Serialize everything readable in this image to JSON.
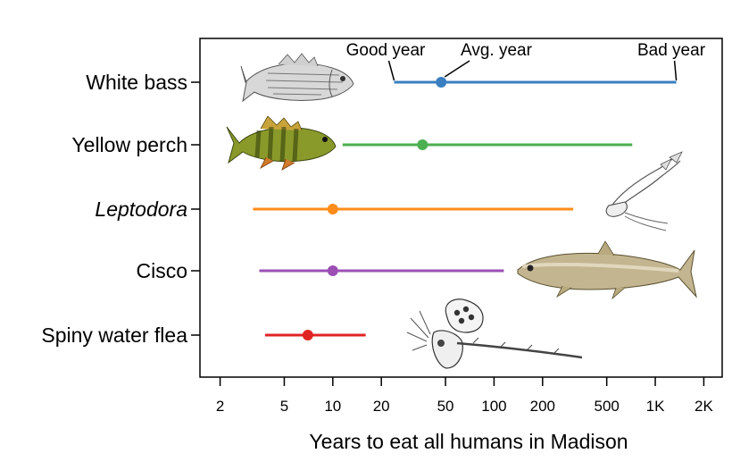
{
  "chart_data": {
    "type": "range-dot",
    "xlabel": "Years to eat all humans in Madison",
    "x_scale": "log",
    "xlim": [
      1.5,
      2600
    ],
    "x_ticks": [
      2,
      5,
      10,
      20,
      50,
      100,
      200,
      500,
      1000,
      2000
    ],
    "x_tick_labels": [
      "2",
      "5",
      "10",
      "20",
      "50",
      "100",
      "200",
      "500",
      "1K",
      "2K"
    ],
    "grid": false,
    "series": [
      {
        "name": "White bass",
        "italic": false,
        "good_year": 24,
        "avg_year": 47,
        "bad_year": 1350,
        "color": "#3a7fc1",
        "image": "white-bass-illustration"
      },
      {
        "name": "Yellow perch",
        "italic": false,
        "good_year": 11.5,
        "avg_year": 36,
        "bad_year": 720,
        "color": "#4caf50",
        "image": "yellow-perch-illustration"
      },
      {
        "name": "Leptodora",
        "italic": true,
        "good_year": 3.2,
        "avg_year": 10,
        "bad_year": 310,
        "color": "#ff8c1a",
        "image": "leptodora-illustration"
      },
      {
        "name": "Cisco",
        "italic": false,
        "good_year": 3.5,
        "avg_year": 10,
        "bad_year": 115,
        "color": "#9b4fb5",
        "image": "cisco-illustration"
      },
      {
        "name": "Spiny water flea",
        "italic": false,
        "good_year": 3.8,
        "avg_year": 7,
        "bad_year": 16,
        "color": "#e02424",
        "image": "spiny-water-flea-illustration"
      }
    ],
    "annotations": [
      {
        "text": "Good year",
        "points_to": "good_year",
        "series_index": 0
      },
      {
        "text": "Avg. year",
        "points_to": "avg_year",
        "series_index": 0
      },
      {
        "text": "Bad year",
        "points_to": "bad_year",
        "series_index": 0
      }
    ]
  }
}
